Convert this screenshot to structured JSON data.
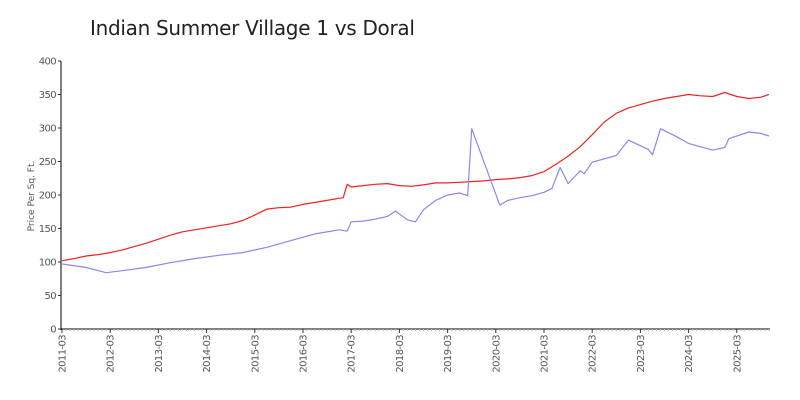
{
  "chart_data": {
    "type": "line",
    "title": "Indian Summer Village 1 vs Doral",
    "xlabel": "",
    "ylabel": "Price Per Sq. Ft.",
    "ylim": [
      0,
      400
    ],
    "yticks": [
      0,
      50,
      100,
      150,
      200,
      250,
      300,
      350,
      400
    ],
    "xtick_labels": [
      "2011-03",
      "2012-03",
      "2013-03",
      "2014-03",
      "2015-03",
      "2016-03",
      "2017-03",
      "2018-03",
      "2019-03",
      "2020-03",
      "2021-03",
      "2022-03",
      "2023-03",
      "2024-03",
      "2025-03"
    ],
    "grid": false,
    "legend": "none",
    "series": [
      {
        "name": "Indian Summer Village 1",
        "color": "#ee2222",
        "points": [
          [
            "2011-03",
            102
          ],
          [
            "2011-06",
            105
          ],
          [
            "2011-09",
            109
          ],
          [
            "2011-12",
            111
          ],
          [
            "2012-03",
            114
          ],
          [
            "2012-06",
            118
          ],
          [
            "2012-09",
            123
          ],
          [
            "2012-12",
            128
          ],
          [
            "2013-03",
            134
          ],
          [
            "2013-06",
            140
          ],
          [
            "2013-09",
            145
          ],
          [
            "2013-12",
            148
          ],
          [
            "2014-03",
            151
          ],
          [
            "2014-06",
            154
          ],
          [
            "2014-09",
            157
          ],
          [
            "2014-12",
            162
          ],
          [
            "2015-03",
            170
          ],
          [
            "2015-06",
            179
          ],
          [
            "2015-09",
            181
          ],
          [
            "2015-12",
            182
          ],
          [
            "2016-03",
            186
          ],
          [
            "2016-06",
            189
          ],
          [
            "2016-09",
            192
          ],
          [
            "2016-12",
            195
          ],
          [
            "2017-01",
            196
          ],
          [
            "2017-02",
            216
          ],
          [
            "2017-03",
            212
          ],
          [
            "2017-06",
            214
          ],
          [
            "2017-09",
            216
          ],
          [
            "2017-12",
            217
          ],
          [
            "2018-03",
            214
          ],
          [
            "2018-06",
            213
          ],
          [
            "2018-09",
            215
          ],
          [
            "2018-12",
            218
          ],
          [
            "2019-03",
            218
          ],
          [
            "2019-06",
            219
          ],
          [
            "2019-09",
            220
          ],
          [
            "2019-12",
            221
          ],
          [
            "2020-03",
            223
          ],
          [
            "2020-06",
            224
          ],
          [
            "2020-09",
            226
          ],
          [
            "2020-12",
            229
          ],
          [
            "2021-03",
            235
          ],
          [
            "2021-06",
            246
          ],
          [
            "2021-09",
            258
          ],
          [
            "2021-12",
            272
          ],
          [
            "2022-03",
            290
          ],
          [
            "2022-06",
            309
          ],
          [
            "2022-09",
            322
          ],
          [
            "2022-12",
            330
          ],
          [
            "2023-03",
            335
          ],
          [
            "2023-06",
            340
          ],
          [
            "2023-09",
            344
          ],
          [
            "2023-12",
            347
          ],
          [
            "2024-03",
            350
          ],
          [
            "2024-06",
            348
          ],
          [
            "2024-09",
            347
          ],
          [
            "2024-12",
            353
          ],
          [
            "2025-03",
            347
          ],
          [
            "2025-06",
            344
          ],
          [
            "2025-09",
            346
          ],
          [
            "2025-11",
            350
          ]
        ]
      },
      {
        "name": "Doral",
        "color": "#8888ee",
        "points": [
          [
            "2011-03",
            97
          ],
          [
            "2011-09",
            92
          ],
          [
            "2012-02",
            84
          ],
          [
            "2012-06",
            87
          ],
          [
            "2012-12",
            92
          ],
          [
            "2013-06",
            99
          ],
          [
            "2013-12",
            105
          ],
          [
            "2014-06",
            110
          ],
          [
            "2014-12",
            114
          ],
          [
            "2015-06",
            122
          ],
          [
            "2015-12",
            132
          ],
          [
            "2016-06",
            142
          ],
          [
            "2016-12",
            148
          ],
          [
            "2017-02",
            146
          ],
          [
            "2017-03",
            160
          ],
          [
            "2017-06",
            161
          ],
          [
            "2017-09",
            164
          ],
          [
            "2017-12",
            168
          ],
          [
            "2018-02",
            176
          ],
          [
            "2018-05",
            163
          ],
          [
            "2018-07",
            160
          ],
          [
            "2018-09",
            178
          ],
          [
            "2018-12",
            192
          ],
          [
            "2019-03",
            200
          ],
          [
            "2019-06",
            203
          ],
          [
            "2019-08",
            199
          ],
          [
            "2019-09",
            299
          ],
          [
            "2020-04",
            185
          ],
          [
            "2020-06",
            192
          ],
          [
            "2020-09",
            196
          ],
          [
            "2020-12",
            199
          ],
          [
            "2021-03",
            204
          ],
          [
            "2021-05",
            210
          ],
          [
            "2021-07",
            241
          ],
          [
            "2021-09",
            217
          ],
          [
            "2021-12",
            236
          ],
          [
            "2022-01",
            232
          ],
          [
            "2022-03",
            249
          ],
          [
            "2022-09",
            259
          ],
          [
            "2022-12",
            282
          ],
          [
            "2023-05",
            268
          ],
          [
            "2023-06",
            260
          ],
          [
            "2023-08",
            299
          ],
          [
            "2023-12",
            287
          ],
          [
            "2024-03",
            277
          ],
          [
            "2024-06",
            272
          ],
          [
            "2024-09",
            267
          ],
          [
            "2024-12",
            271
          ],
          [
            "2025-01",
            284
          ],
          [
            "2025-06",
            294
          ],
          [
            "2025-09",
            292
          ],
          [
            "2025-11",
            288
          ]
        ]
      }
    ]
  }
}
